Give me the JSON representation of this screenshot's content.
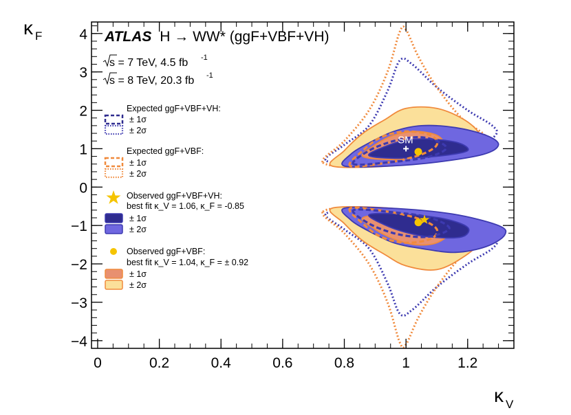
{
  "chart_data": {
    "type": "contour",
    "experiment": "ATLAS",
    "title": "H → WW* (ggF+VBF+VH)",
    "xlabel": "κ_V",
    "ylabel": "κ_F",
    "xlim": [
      -0.02,
      1.35
    ],
    "ylim": [
      -4.2,
      4.3
    ],
    "x_ticks": [
      0,
      0.2,
      0.4,
      0.6,
      0.8,
      1,
      1.2
    ],
    "y_ticks": [
      -4,
      -3,
      -2,
      -1,
      0,
      1,
      2,
      3,
      4
    ],
    "lumi_lines": [
      {
        "energy": "s = 7 TeV, 4.5 fb",
        "exp": "-1"
      },
      {
        "energy": "s = 8 TeV, 20.3 fb",
        "exp": "-1"
      }
    ],
    "sm_point": {
      "label": "SM",
      "x": 1.0,
      "y": 1.0
    },
    "best_fit_star": {
      "x": 1.06,
      "y": -0.85
    },
    "best_fit_dots": [
      {
        "x": 1.04,
        "y": 0.92
      },
      {
        "x": 1.04,
        "y": -0.92
      }
    ],
    "legend": {
      "exp_vh_title": "Expected ggF+VBF+VH:",
      "exp_vbf_title": "Expected ggF+VBF:",
      "obs_vh_title": "Observed ggF+VBF+VH:",
      "obs_vh_fit": "best fit  κ_V = 1.06,  κ_F = -0.85",
      "obs_vbf_title": "Observed ggF+VBF:",
      "obs_vbf_fit": "best fit   κ_V = 1.04,  κ_F = ± 0.92",
      "one_sigma": "± 1σ",
      "two_sigma": "± 2σ"
    },
    "colors": {
      "vh_dark": "#2f2c8f",
      "vh_light": "#6f67e0",
      "vh_line": "#3d3ab0",
      "vbf_dark": "#e89070",
      "vbf_light": "#fbe09a",
      "vbf_line": "#f08a3c",
      "marker": "#f5c400"
    },
    "contours": [
      {
        "id": "exp-vh-2s-top",
        "style": "dotted",
        "color": "vh",
        "points": [
          [
            0.74,
            0.7
          ],
          [
            0.8,
            1.1
          ],
          [
            0.88,
            1.6
          ],
          [
            0.94,
            2.5
          ],
          [
            0.98,
            3.3
          ],
          [
            1.02,
            3.2
          ],
          [
            1.1,
            2.6
          ],
          [
            1.2,
            2.0
          ],
          [
            1.28,
            1.6
          ],
          [
            1.29,
            1.35
          ],
          [
            1.22,
            1.0
          ],
          [
            1.05,
            0.8
          ],
          [
            0.85,
            0.6
          ]
        ]
      },
      {
        "id": "exp-vh-2s-bot",
        "style": "dotted",
        "color": "vh",
        "points": [
          [
            0.74,
            -0.7
          ],
          [
            0.8,
            -1.1
          ],
          [
            0.88,
            -1.6
          ],
          [
            0.94,
            -2.5
          ],
          [
            0.98,
            -3.3
          ],
          [
            1.02,
            -3.2
          ],
          [
            1.1,
            -2.6
          ],
          [
            1.2,
            -2.0
          ],
          [
            1.28,
            -1.6
          ],
          [
            1.29,
            -1.35
          ],
          [
            1.22,
            -1.0
          ],
          [
            1.05,
            -0.8
          ],
          [
            0.85,
            -0.6
          ]
        ]
      },
      {
        "id": "exp-vbf-2s-top",
        "style": "dotted",
        "color": "vbf",
        "points": [
          [
            0.73,
            0.65
          ],
          [
            0.8,
            1.2
          ],
          [
            0.88,
            2.0
          ],
          [
            0.94,
            3.0
          ],
          [
            0.98,
            4.05
          ],
          [
            1.0,
            4.1
          ],
          [
            1.04,
            3.4
          ],
          [
            1.1,
            2.6
          ],
          [
            1.18,
            1.8
          ],
          [
            1.26,
            1.3
          ],
          [
            1.22,
            0.95
          ],
          [
            1.05,
            0.75
          ],
          [
            0.85,
            0.55
          ]
        ]
      },
      {
        "id": "exp-vbf-2s-bot",
        "style": "dotted",
        "color": "vbf",
        "points": [
          [
            0.73,
            -0.65
          ],
          [
            0.8,
            -1.2
          ],
          [
            0.88,
            -2.0
          ],
          [
            0.94,
            -3.0
          ],
          [
            0.98,
            -4.05
          ],
          [
            1.0,
            -4.1
          ],
          [
            1.04,
            -3.4
          ],
          [
            1.1,
            -2.6
          ],
          [
            1.18,
            -1.8
          ],
          [
            1.26,
            -1.3
          ],
          [
            1.22,
            -0.95
          ],
          [
            1.05,
            -0.75
          ],
          [
            0.85,
            -0.55
          ]
        ]
      },
      {
        "id": "obs-vbf-2s-top",
        "style": "fill",
        "color": "vbf_light",
        "points": [
          [
            0.76,
            0.55
          ],
          [
            0.8,
            0.95
          ],
          [
            0.86,
            1.4
          ],
          [
            0.93,
            1.75
          ],
          [
            1.0,
            2.05
          ],
          [
            1.1,
            2.05
          ],
          [
            1.19,
            1.75
          ],
          [
            1.24,
            1.35
          ],
          [
            1.22,
            1.0
          ],
          [
            1.12,
            0.75
          ],
          [
            0.95,
            0.55
          ]
        ]
      },
      {
        "id": "obs-vbf-2s-bot",
        "style": "fill",
        "color": "vbf_light",
        "points": [
          [
            0.76,
            -0.55
          ],
          [
            0.8,
            -0.95
          ],
          [
            0.86,
            -1.4
          ],
          [
            0.93,
            -1.75
          ],
          [
            1.0,
            -2.05
          ],
          [
            1.1,
            -2.15
          ],
          [
            1.19,
            -1.8
          ],
          [
            1.24,
            -1.4
          ],
          [
            1.22,
            -1.0
          ],
          [
            1.12,
            -0.75
          ],
          [
            0.95,
            -0.55
          ]
        ]
      },
      {
        "id": "obs-vh-2s-top",
        "style": "fill",
        "color": "vh_light",
        "points": [
          [
            0.8,
            0.55
          ],
          [
            0.82,
            0.85
          ],
          [
            0.88,
            1.15
          ],
          [
            0.96,
            1.45
          ],
          [
            1.05,
            1.6
          ],
          [
            1.16,
            1.55
          ],
          [
            1.26,
            1.35
          ],
          [
            1.3,
            1.1
          ],
          [
            1.25,
            0.85
          ],
          [
            1.1,
            0.65
          ],
          [
            0.95,
            0.55
          ]
        ]
      },
      {
        "id": "obs-vh-2s-bot",
        "style": "fill",
        "color": "vh_light",
        "points": [
          [
            0.8,
            -0.55
          ],
          [
            0.82,
            -0.85
          ],
          [
            0.88,
            -1.15
          ],
          [
            0.96,
            -1.45
          ],
          [
            1.05,
            -1.6
          ],
          [
            1.16,
            -1.7
          ],
          [
            1.26,
            -1.55
          ],
          [
            1.32,
            -1.25
          ],
          [
            1.3,
            -1.0
          ],
          [
            1.15,
            -0.7
          ],
          [
            0.95,
            -0.55
          ]
        ]
      },
      {
        "id": "obs-vbf-1s-top",
        "style": "fill",
        "color": "vbf_dark",
        "points": [
          [
            0.86,
            0.8
          ],
          [
            0.9,
            1.1
          ],
          [
            0.96,
            1.35
          ],
          [
            1.03,
            1.45
          ],
          [
            1.1,
            1.35
          ],
          [
            1.12,
            1.1
          ],
          [
            1.07,
            0.85
          ],
          [
            0.96,
            0.72
          ]
        ]
      },
      {
        "id": "obs-vbf-1s-bot",
        "style": "fill",
        "color": "vbf_dark",
        "points": [
          [
            0.86,
            -0.8
          ],
          [
            0.9,
            -1.1
          ],
          [
            0.96,
            -1.35
          ],
          [
            1.03,
            -1.5
          ],
          [
            1.1,
            -1.45
          ],
          [
            1.14,
            -1.15
          ],
          [
            1.08,
            -0.85
          ],
          [
            0.96,
            -0.72
          ]
        ]
      },
      {
        "id": "obs-vh-1s-top",
        "style": "fill",
        "color": "vh_dark",
        "points": [
          [
            0.88,
            0.82
          ],
          [
            0.93,
            1.05
          ],
          [
            1.0,
            1.22
          ],
          [
            1.08,
            1.25
          ],
          [
            1.17,
            1.15
          ],
          [
            1.2,
            0.95
          ],
          [
            1.12,
            0.82
          ],
          [
            0.98,
            0.75
          ]
        ]
      },
      {
        "id": "obs-vh-1s-bot",
        "style": "fill",
        "color": "vh_dark",
        "points": [
          [
            0.88,
            -0.72
          ],
          [
            0.93,
            -0.98
          ],
          [
            1.0,
            -1.18
          ],
          [
            1.08,
            -1.3
          ],
          [
            1.18,
            -1.3
          ],
          [
            1.2,
            -1.05
          ],
          [
            1.12,
            -0.82
          ],
          [
            0.98,
            -0.7
          ]
        ]
      },
      {
        "id": "exp-vbf-1s-top",
        "style": "dashed",
        "color": "vbf",
        "points": [
          [
            0.82,
            0.55
          ],
          [
            0.86,
            0.95
          ],
          [
            0.92,
            1.3
          ],
          [
            1.0,
            1.45
          ],
          [
            1.08,
            1.35
          ],
          [
            1.1,
            1.1
          ],
          [
            1.05,
            0.85
          ],
          [
            0.95,
            0.65
          ]
        ]
      },
      {
        "id": "exp-vbf-1s-bot",
        "style": "dashed",
        "color": "vbf",
        "points": [
          [
            0.82,
            -0.55
          ],
          [
            0.86,
            -0.95
          ],
          [
            0.92,
            -1.3
          ],
          [
            1.0,
            -1.45
          ],
          [
            1.08,
            -1.35
          ],
          [
            1.1,
            -1.1
          ],
          [
            1.05,
            -0.85
          ],
          [
            0.95,
            -0.65
          ]
        ]
      },
      {
        "id": "exp-vh-1s-top",
        "style": "dashed",
        "color": "vh",
        "points": [
          [
            0.83,
            0.6
          ],
          [
            0.88,
            0.95
          ],
          [
            0.96,
            1.2
          ],
          [
            1.04,
            1.3
          ],
          [
            1.1,
            1.2
          ],
          [
            1.13,
            1.0
          ],
          [
            1.07,
            0.78
          ],
          [
            0.95,
            0.65
          ]
        ]
      },
      {
        "id": "exp-vh-1s-bot",
        "style": "dashed",
        "color": "vh",
        "points": [
          [
            0.83,
            -0.6
          ],
          [
            0.88,
            -0.95
          ],
          [
            0.96,
            -1.2
          ],
          [
            1.04,
            -1.3
          ],
          [
            1.1,
            -1.25
          ],
          [
            1.14,
            -1.05
          ],
          [
            1.07,
            -0.78
          ],
          [
            0.95,
            -0.65
          ]
        ]
      }
    ]
  }
}
